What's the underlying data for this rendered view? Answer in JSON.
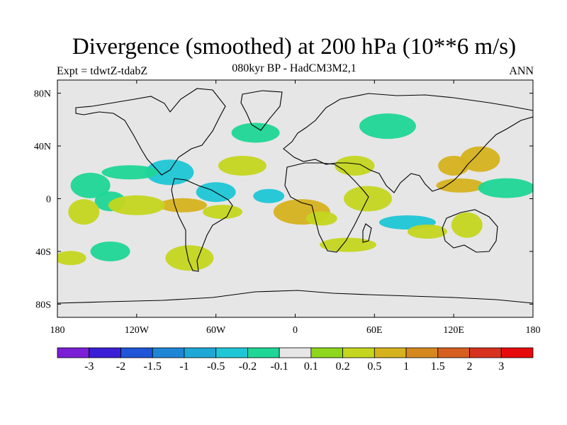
{
  "title": "Divergence (smoothed) at 200 hPa (10**6 m/s)",
  "subtitle": "080kyr BP - HadCM3M2,1",
  "expt_label": "Expt = tdwtZ-tdabZ",
  "season": "ANN",
  "map_axes": {
    "lon_ticks": [
      "180",
      "120W",
      "60W",
      "0",
      "60E",
      "120E",
      "180"
    ],
    "lon_values": [
      -180,
      -120,
      -60,
      0,
      60,
      120,
      180
    ],
    "lat_ticks": [
      "80N",
      "40N",
      "0",
      "40S",
      "80S"
    ],
    "lat_values": [
      80,
      40,
      0,
      -40,
      -80
    ],
    "lon_range": [
      -180,
      180
    ],
    "lat_range": [
      -90,
      90
    ]
  },
  "colorbar": {
    "labels": [
      "-3",
      "-2",
      "-1.5",
      "-1",
      "-0.5",
      "-0.2",
      "-0.1",
      "0.1",
      "0.2",
      "0.5",
      "1",
      "1.5",
      "2",
      "3"
    ],
    "colors": [
      "#7a1fd6",
      "#3a1fd6",
      "#1f55d6",
      "#1f86d6",
      "#1fa8d6",
      "#1fc6d6",
      "#1fd696",
      "#e6e6e6",
      "#8fd61f",
      "#c4d61f",
      "#d6b21f",
      "#d6881f",
      "#d6601f",
      "#d6321f",
      "#e60a0a"
    ]
  },
  "chart_data": {
    "type": "heatmap",
    "title": "Divergence (smoothed) at 200 hPa (10**6 m/s)",
    "subtitle": "080kyr BP - HadCM3M2,1",
    "units": "10**6 m/s",
    "x_range": [
      -180,
      180
    ],
    "y_range": [
      -90,
      90
    ],
    "contour_levels": [
      -3,
      -2,
      -1.5,
      -1,
      -0.5,
      -0.2,
      -0.1,
      0.1,
      0.2,
      0.5,
      1,
      1.5,
      2,
      3
    ],
    "features": [
      {
        "lon": -20,
        "lat": 2,
        "value": -0.3
      },
      {
        "lon": -60,
        "lat": 5,
        "value": -0.25
      },
      {
        "lon": -95,
        "lat": 20,
        "value": -0.3
      },
      {
        "lon": -125,
        "lat": 20,
        "value": -0.15
      },
      {
        "lon": -140,
        "lat": -2,
        "value": -0.15
      },
      {
        "lon": -155,
        "lat": 10,
        "value": -0.15
      },
      {
        "lon": -85,
        "lat": -5,
        "value": 0.6
      },
      {
        "lon": -120,
        "lat": -5,
        "value": 0.3
      },
      {
        "lon": -160,
        "lat": -10,
        "value": 0.3
      },
      {
        "lon": -55,
        "lat": -10,
        "value": 0.3
      },
      {
        "lon": -40,
        "lat": 25,
        "value": 0.3
      },
      {
        "lon": 5,
        "lat": -10,
        "value": 0.5
      },
      {
        "lon": 20,
        "lat": -15,
        "value": 0.4
      },
      {
        "lon": 45,
        "lat": 25,
        "value": 0.3
      },
      {
        "lon": 55,
        "lat": 0,
        "value": 0.3
      },
      {
        "lon": 85,
        "lat": -18,
        "value": -0.3
      },
      {
        "lon": 120,
        "lat": 25,
        "value": 0.5
      },
      {
        "lon": 140,
        "lat": 30,
        "value": 0.5
      },
      {
        "lon": 125,
        "lat": 10,
        "value": 0.7
      },
      {
        "lon": 160,
        "lat": 8,
        "value": -0.2
      },
      {
        "lon": 130,
        "lat": -20,
        "value": 0.35
      },
      {
        "lon": 100,
        "lat": -25,
        "value": 0.3
      },
      {
        "lon": -30,
        "lat": 50,
        "value": -0.15
      },
      {
        "lon": 70,
        "lat": 55,
        "value": -0.15
      },
      {
        "lon": -170,
        "lat": -45,
        "value": 0.3
      },
      {
        "lon": -140,
        "lat": -40,
        "value": -0.15
      },
      {
        "lon": -80,
        "lat": -45,
        "value": 0.3
      },
      {
        "lon": 40,
        "lat": -35,
        "value": 0.3
      }
    ]
  }
}
